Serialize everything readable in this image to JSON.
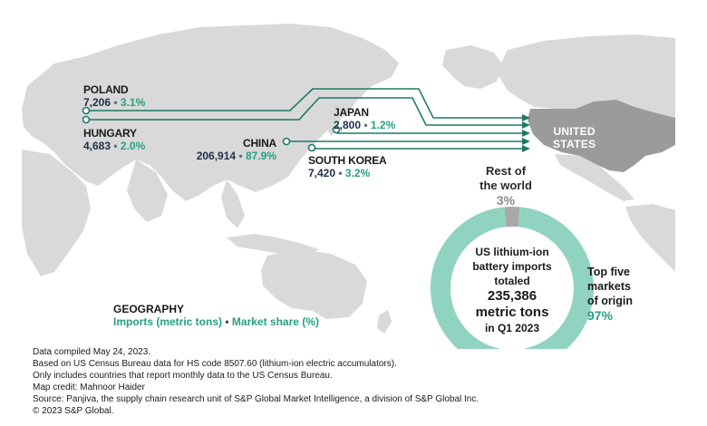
{
  "markets": [
    {
      "name": "POLAND",
      "imports": "7,206",
      "share": "3.1%"
    },
    {
      "name": "HUNGARY",
      "imports": "4,683",
      "share": "2.0%"
    },
    {
      "name": "CHINA",
      "imports": "206,914",
      "share": "87.9%"
    },
    {
      "name": "JAPAN",
      "imports": "2,800",
      "share": "1.2%"
    },
    {
      "name": "SOUTH KOREA",
      "imports": "7,420",
      "share": "3.2%"
    }
  ],
  "destination": {
    "line1": "UNITED",
    "line2": "STATES"
  },
  "separator": "•",
  "donut": {
    "rest_label_line1": "Rest of",
    "rest_label_line2": "the world",
    "rest_share": "3%",
    "rest_fraction": 0.03,
    "center_line1": "US lithium-ion",
    "center_line2": "battery imports",
    "center_line3": "totaled",
    "center_value": "235,386",
    "center_unit": "metric tons",
    "center_period": "in Q1 2023",
    "top5_line1": "Top five",
    "top5_line2": "markets",
    "top5_line3": "of origin",
    "top5_share": "97%"
  },
  "legend": {
    "title": "GEOGRAPHY",
    "imports_label": "Imports (metric tons)",
    "share_label": "Market share (%)"
  },
  "notes": [
    "Data compiled May 24, 2023.",
    "Based on US Census Bureau data for HS code 8507.60 (lithium-ion electric accumulators).",
    "Only includes countries that report monthly data to the US Census Bureau.",
    "Map credit: Mahnoor Haider",
    "Source: Panjiva, the supply chain research unit of S&P Global Market Intelligence, a division of S&P Global Inc.",
    "© 2023 S&P Global."
  ],
  "colors": {
    "land": "#d9d9d9",
    "land_highlight": "#9b9b9b",
    "accent": "#27a07f",
    "donut_main": "#8fd3c0",
    "donut_rest": "#a9a9a9",
    "flow_line": "#1e7a66"
  }
}
